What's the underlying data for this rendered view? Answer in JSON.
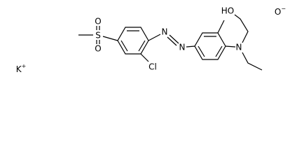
{
  "potassium": {
    "symbol": "K",
    "charge": "+"
  },
  "oxide": {
    "symbol": "O",
    "charge": "−"
  },
  "atoms": {
    "sulfonyl_o_top": "O",
    "sulfonyl_o_bottom": "O",
    "sulfur": "S",
    "chlorine": "Cl",
    "azo_n1": "N",
    "azo_n2": "N",
    "amine_n": "N",
    "hydroxyl": "HO"
  }
}
